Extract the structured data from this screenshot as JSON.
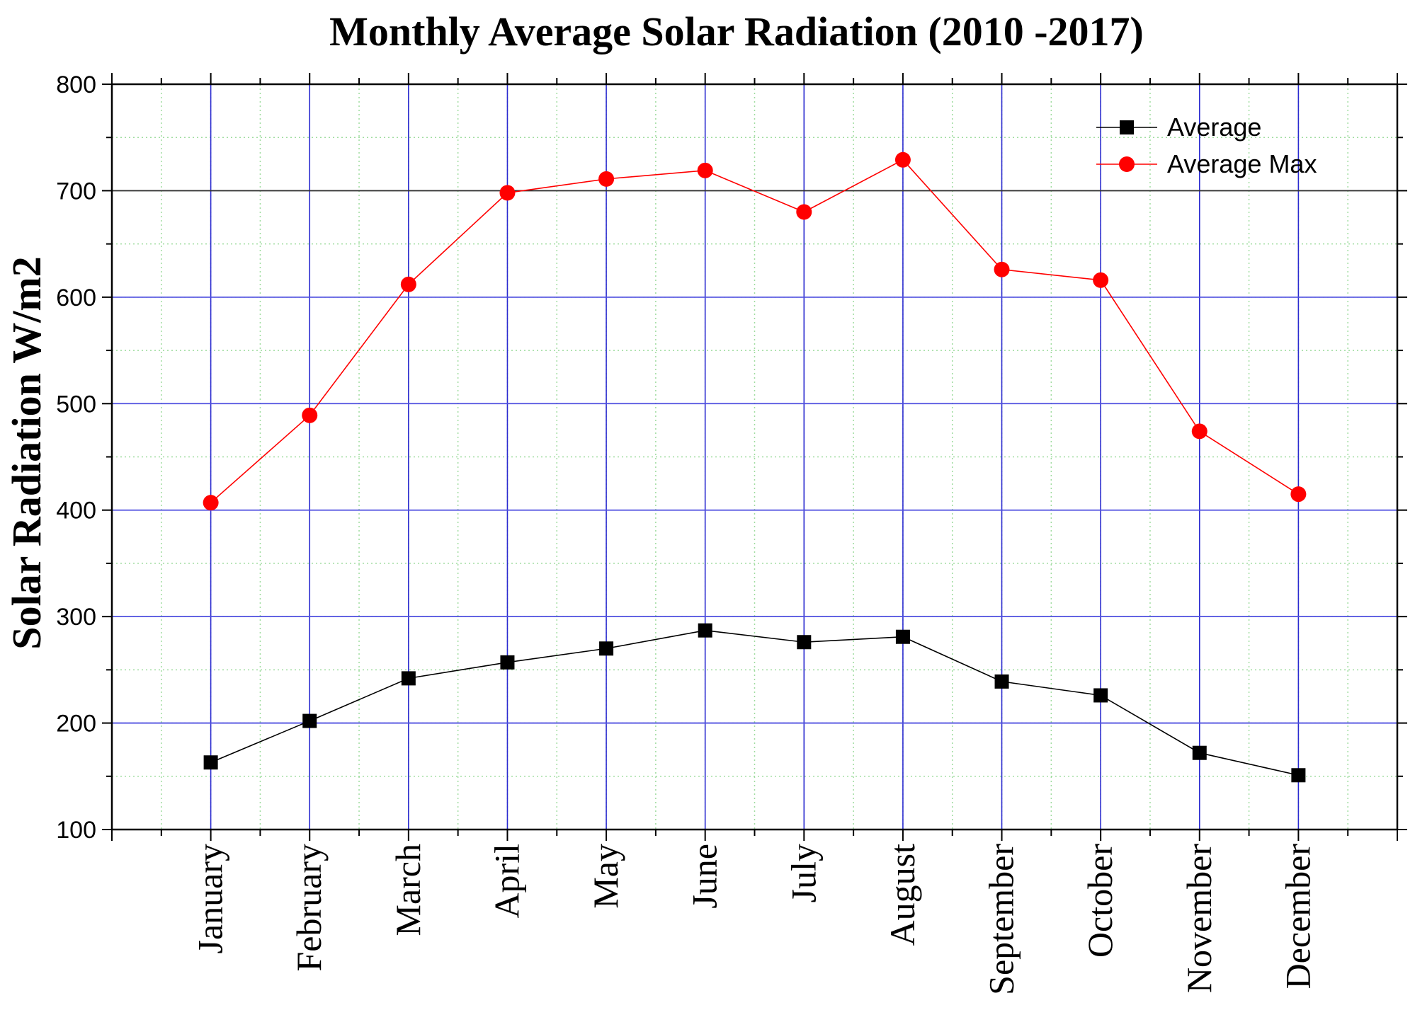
{
  "chart_data": {
    "type": "line",
    "title": "Monthly Average Solar Radiation (2010 -2017)",
    "xlabel": "",
    "ylabel": "Solar Radiation W/m2",
    "ylim": [
      100,
      800
    ],
    "yticks": [
      100,
      200,
      300,
      400,
      500,
      600,
      700,
      800
    ],
    "categories": [
      "January",
      "February",
      "March",
      "April",
      "May",
      "June",
      "July",
      "August",
      "September",
      "October",
      "November",
      "December"
    ],
    "grid": true,
    "legend_position": "top-right",
    "series": [
      {
        "name": "Average",
        "marker": "square",
        "color": "#000000",
        "line_color": "#000000",
        "values": [
          163,
          202,
          242,
          257,
          270,
          287,
          276,
          281,
          239,
          226,
          172,
          151
        ]
      },
      {
        "name": "Average Max",
        "marker": "circle",
        "color": "#ff0000",
        "line_color": "#ff0000",
        "values": [
          407,
          489,
          612,
          698,
          711,
          719,
          680,
          729,
          626,
          616,
          474,
          415
        ]
      }
    ]
  }
}
